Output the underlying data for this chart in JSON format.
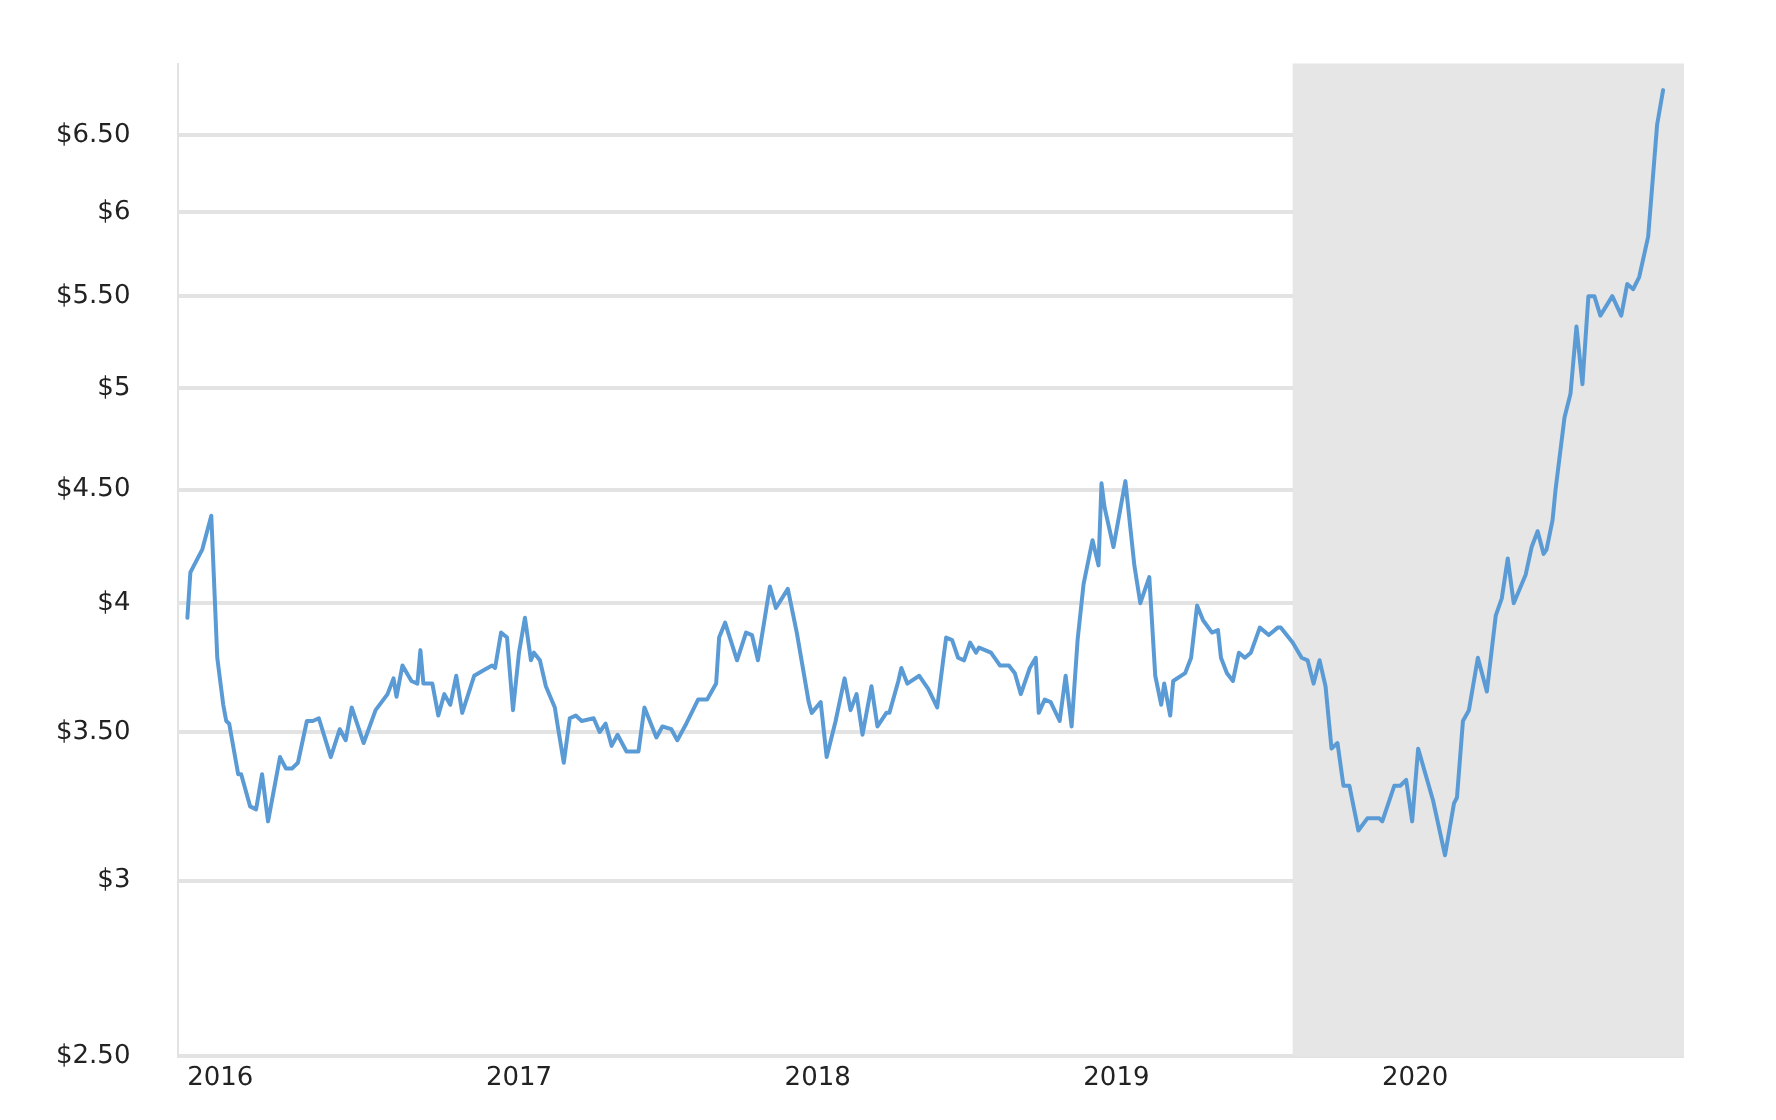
{
  "chart_data": {
    "type": "line",
    "log": "y",
    "grid": "y",
    "legend": false,
    "marker": "none",
    "line_style": "solid",
    "xlim": [
      2015.86,
      2020.9
    ],
    "xticks": [
      2016,
      2017,
      2018,
      2019,
      2020
    ],
    "ylim": [
      2.5,
      7
    ],
    "yticks": [
      {
        "value": 2.5,
        "label": "$2.50"
      },
      {
        "value": 3,
        "label": "$3"
      },
      {
        "value": 3.5,
        "label": "$3.50"
      },
      {
        "value": 4,
        "label": "$4"
      },
      {
        "value": 4.5,
        "label": "$4.50"
      },
      {
        "value": 5,
        "label": "$5"
      },
      {
        "value": 5.5,
        "label": "$5.50"
      },
      {
        "value": 6,
        "label": "$6"
      },
      {
        "value": 6.5,
        "label": "$6.50"
      }
    ],
    "bands": [
      {
        "axis": "x",
        "from": 2019.59,
        "to": 2020.9,
        "color": "#e6e6e6"
      }
    ],
    "series": [
      {
        "color": "#5b9bd5",
        "x": [
          2015.89,
          2015.9,
          2015.94,
          2015.97,
          2015.99,
          2016.01,
          2016.02,
          2016.03,
          2016.06,
          2016.07,
          2016.1,
          2016.12,
          2016.14,
          2016.16,
          2016.2,
          2016.22,
          2016.24,
          2016.26,
          2016.29,
          2016.31,
          2016.33,
          2016.37,
          2016.4,
          2016.42,
          2016.44,
          2016.48,
          2016.52,
          2016.56,
          2016.58,
          2016.59,
          2016.61,
          2016.64,
          2016.66,
          2016.67,
          2016.68,
          2016.71,
          2016.73,
          2016.75,
          2016.77,
          2016.79,
          2016.81,
          2016.85,
          2016.88,
          2016.91,
          2016.92,
          2016.94,
          2016.96,
          2016.98,
          2017.0,
          2017.02,
          2017.04,
          2017.05,
          2017.07,
          2017.09,
          2017.12,
          2017.13,
          2017.15,
          2017.17,
          2017.19,
          2017.21,
          2017.25,
          2017.27,
          2017.29,
          2017.31,
          2017.33,
          2017.36,
          2017.4,
          2017.42,
          2017.46,
          2017.48,
          2017.51,
          2017.53,
          2017.56,
          2017.6,
          2017.63,
          2017.66,
          2017.67,
          2017.69,
          2017.73,
          2017.76,
          2017.78,
          2017.8,
          2017.84,
          2017.86,
          2017.9,
          2017.93,
          2017.97,
          2017.98,
          2018.01,
          2018.03,
          2018.06,
          2018.09,
          2018.11,
          2018.13,
          2018.15,
          2018.18,
          2018.2,
          2018.23,
          2018.24,
          2018.27,
          2018.28,
          2018.3,
          2018.34,
          2018.37,
          2018.4,
          2018.42,
          2018.43,
          2018.45,
          2018.47,
          2018.49,
          2018.51,
          2018.53,
          2018.54,
          2018.58,
          2018.61,
          2018.64,
          2018.66,
          2018.68,
          2018.71,
          2018.73,
          2018.74,
          2018.76,
          2018.78,
          2018.81,
          2018.83,
          2018.85,
          2018.87,
          2018.89,
          2018.92,
          2018.94,
          2018.95,
          2018.96,
          2018.99,
          2019.03,
          2019.06,
          2019.08,
          2019.11,
          2019.13,
          2019.15,
          2019.16,
          2019.18,
          2019.19,
          2019.23,
          2019.25,
          2019.27,
          2019.29,
          2019.32,
          2019.34,
          2019.35,
          2019.37,
          2019.39,
          2019.41,
          2019.43,
          2019.45,
          2019.48,
          2019.51,
          2019.54,
          2019.55,
          2019.59,
          2019.62,
          2019.64,
          2019.66,
          2019.68,
          2019.7,
          2019.72,
          2019.74,
          2019.76,
          2019.78,
          2019.81,
          2019.84,
          2019.88,
          2019.89,
          2019.93,
          2019.95,
          2019.97,
          2019.99,
          2020.01,
          2020.06,
          2020.1,
          2020.13,
          2020.14,
          2020.16,
          2020.18,
          2020.21,
          2020.24,
          2020.27,
          2020.29,
          2020.31,
          2020.33,
          2020.37,
          2020.39,
          2020.41,
          2020.43,
          2020.44,
          2020.46,
          2020.47,
          2020.5,
          2020.52,
          2020.54,
          2020.56,
          2020.58,
          2020.6,
          2020.62,
          2020.66,
          2020.69,
          2020.71,
          2020.73,
          2020.75,
          2020.78,
          2020.81,
          2020.83
        ],
        "values": [
          3.94,
          4.13,
          4.23,
          4.38,
          3.78,
          3.6,
          3.54,
          3.53,
          3.35,
          3.35,
          3.24,
          3.23,
          3.35,
          3.19,
          3.41,
          3.37,
          3.37,
          3.39,
          3.54,
          3.54,
          3.55,
          3.41,
          3.51,
          3.47,
          3.59,
          3.46,
          3.58,
          3.64,
          3.7,
          3.63,
          3.75,
          3.69,
          3.68,
          3.81,
          3.68,
          3.68,
          3.56,
          3.64,
          3.6,
          3.71,
          3.57,
          3.71,
          3.73,
          3.75,
          3.74,
          3.88,
          3.86,
          3.58,
          3.8,
          3.94,
          3.77,
          3.8,
          3.77,
          3.67,
          3.59,
          3.52,
          3.39,
          3.55,
          3.56,
          3.54,
          3.55,
          3.5,
          3.53,
          3.45,
          3.49,
          3.43,
          3.43,
          3.59,
          3.48,
          3.52,
          3.51,
          3.47,
          3.53,
          3.62,
          3.62,
          3.68,
          3.86,
          3.92,
          3.77,
          3.88,
          3.87,
          3.77,
          4.07,
          3.98,
          4.06,
          3.88,
          3.61,
          3.57,
          3.61,
          3.41,
          3.54,
          3.7,
          3.58,
          3.64,
          3.49,
          3.67,
          3.52,
          3.57,
          3.57,
          3.69,
          3.74,
          3.68,
          3.71,
          3.66,
          3.59,
          3.77,
          3.86,
          3.85,
          3.78,
          3.77,
          3.84,
          3.8,
          3.82,
          3.8,
          3.75,
          3.75,
          3.72,
          3.64,
          3.74,
          3.78,
          3.57,
          3.62,
          3.61,
          3.54,
          3.71,
          3.52,
          3.85,
          4.08,
          4.27,
          4.16,
          4.53,
          4.42,
          4.24,
          4.54,
          4.16,
          4.0,
          4.11,
          3.71,
          3.6,
          3.68,
          3.56,
          3.69,
          3.72,
          3.78,
          3.99,
          3.93,
          3.88,
          3.89,
          3.78,
          3.72,
          3.69,
          3.8,
          3.78,
          3.8,
          3.9,
          3.87,
          3.9,
          3.9,
          3.84,
          3.78,
          3.77,
          3.68,
          3.77,
          3.67,
          3.44,
          3.46,
          3.31,
          3.31,
          3.16,
          3.2,
          3.2,
          3.19,
          3.31,
          3.31,
          3.33,
          3.19,
          3.44,
          3.26,
          3.08,
          3.25,
          3.27,
          3.54,
          3.58,
          3.78,
          3.65,
          3.95,
          4.02,
          4.19,
          4.0,
          4.12,
          4.24,
          4.31,
          4.21,
          4.23,
          4.36,
          4.5,
          4.85,
          4.97,
          5.33,
          5.02,
          5.5,
          5.5,
          5.39,
          5.5,
          5.39,
          5.57,
          5.54,
          5.61,
          5.85,
          6.57,
          6.81
        ]
      }
    ]
  }
}
